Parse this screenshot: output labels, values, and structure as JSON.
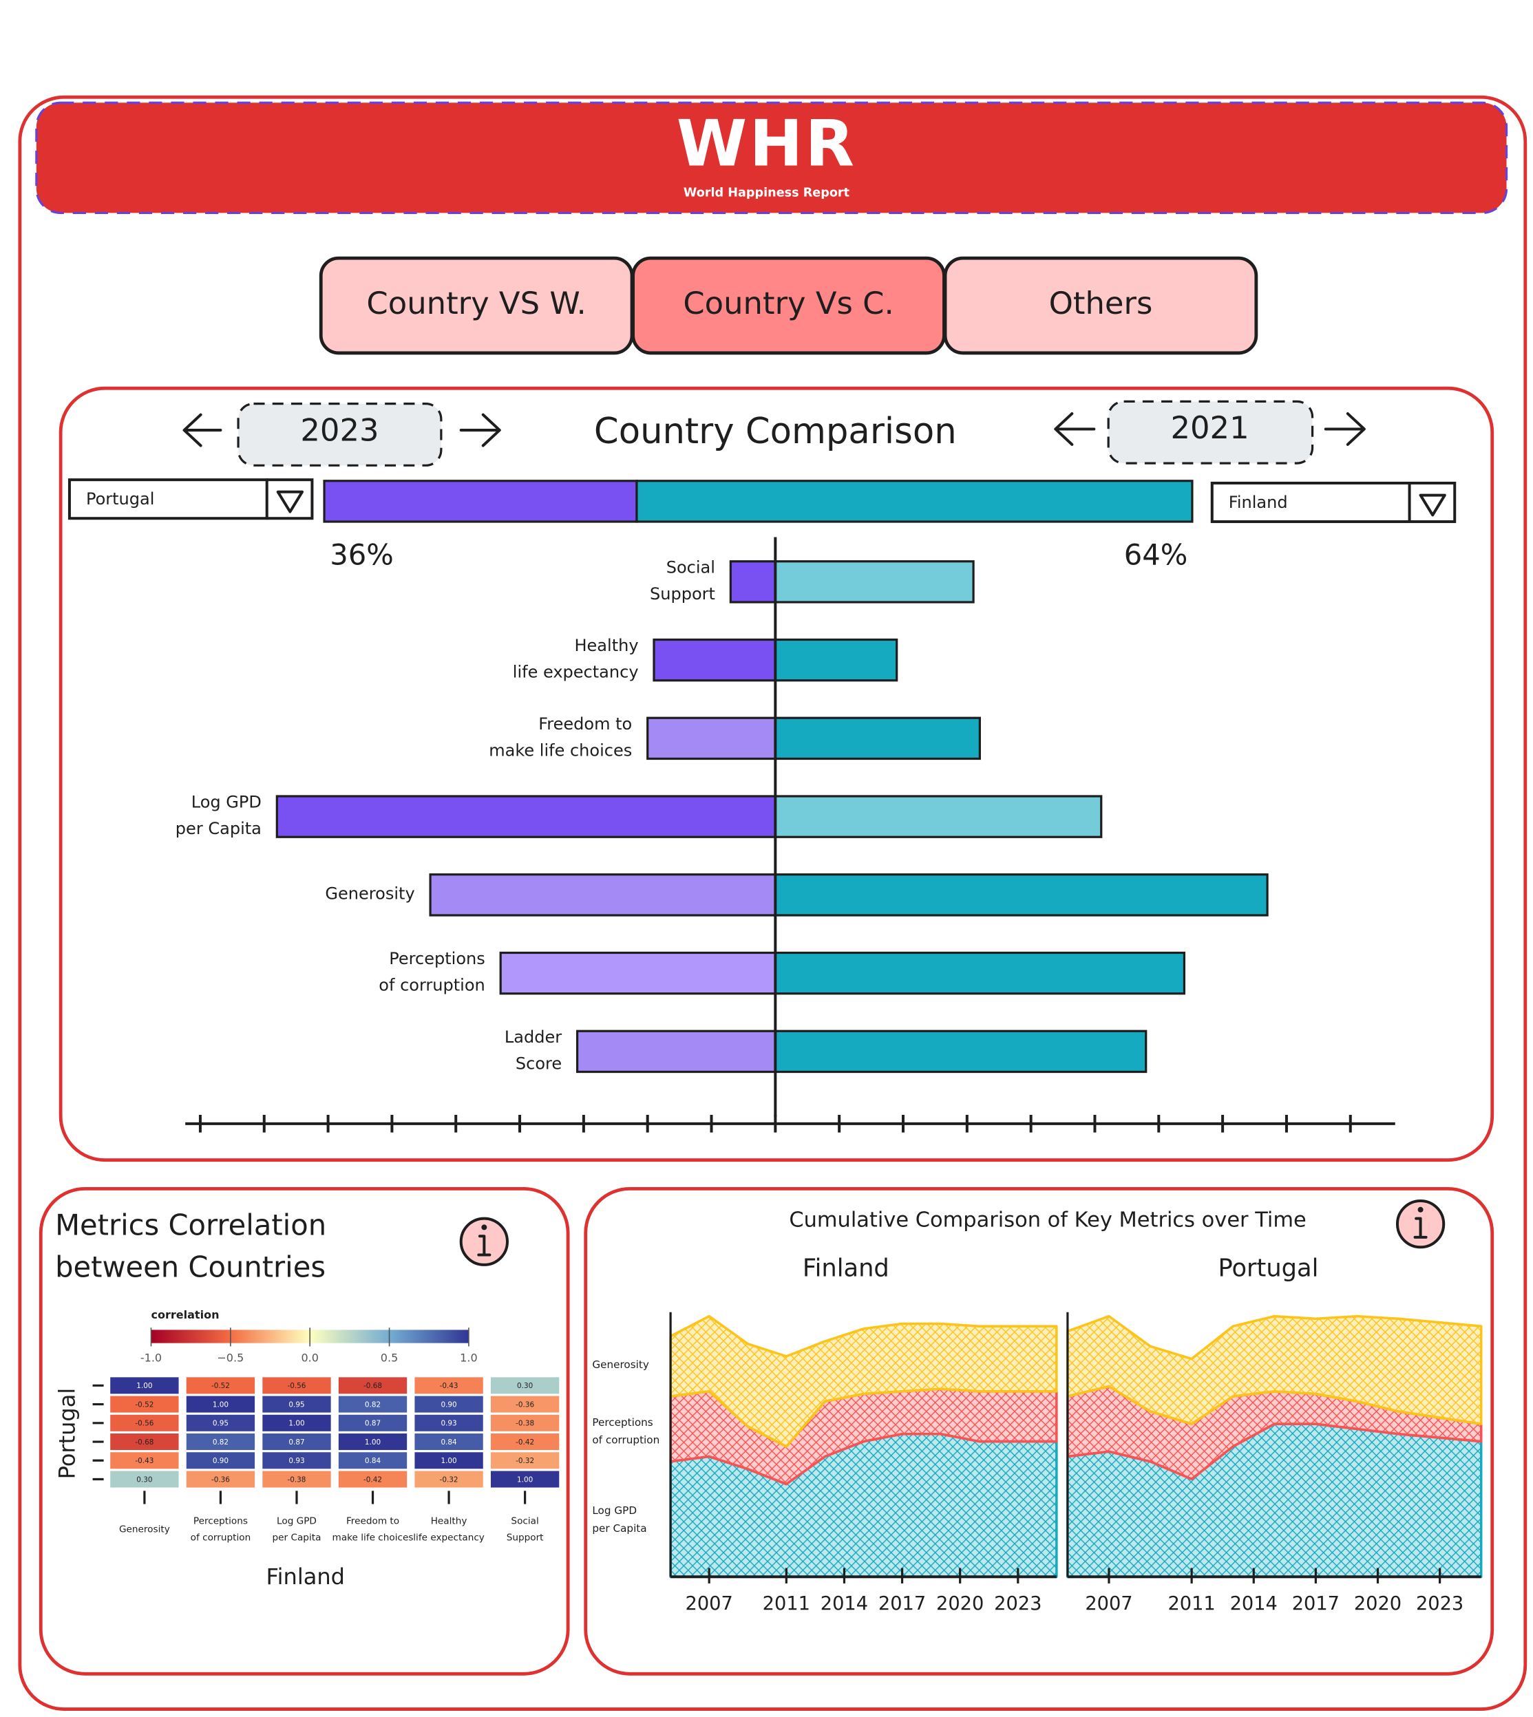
{
  "header": {
    "logo": "WHR",
    "subtitle": "World Happiness Report"
  },
  "tabs": [
    "Country VS W.",
    "Country Vs C.",
    "Others"
  ],
  "tab_colors": [
    "#ffc9c9",
    "#ff8787",
    "#ffc9c9"
  ],
  "comparison": {
    "title": "Country Comparison",
    "left_year": "2023",
    "right_year": "2021",
    "left_country": "Portugal",
    "right_country": "Finland"
  },
  "chart_data": [
    {
      "type": "share",
      "values": [
        36,
        64
      ],
      "value_labels": [
        "36%",
        "64%"
      ],
      "colors": [
        "#7950f2",
        "#15aabf"
      ]
    },
    {
      "type": "butterfly",
      "categories": [
        "Social Support",
        "Healthy life expectancy",
        "Freedom to make life choices",
        "Log GPD per Capita",
        "Generosity",
        "Perceptions of corruption",
        "Ladder Score"
      ],
      "series": [
        {
          "values": [
            -0.07,
            -0.19,
            -0.2,
            -0.78,
            -0.54,
            -0.43,
            -0.31
          ],
          "colors": [
            "#7950f2",
            "#7950f2",
            "#a48af5",
            "#7950f2",
            "#a48af5",
            "#b197fc",
            "#a48af5"
          ]
        },
        {
          "values": [
            0.31,
            0.19,
            0.32,
            0.51,
            0.77,
            0.64,
            0.58
          ],
          "colors": [
            "#74cbd9",
            "#15aabf",
            "#15aabf",
            "#74cbd9",
            "#15aabf",
            "#15aabf",
            "#15aabf"
          ]
        }
      ],
      "xlim": [
        -0.92,
        0.97
      ],
      "xticks": [
        -0.9,
        -0.8,
        -0.7,
        -0.6,
        -0.5,
        -0.4,
        -0.3,
        -0.2,
        -0.1,
        0,
        0.1,
        0.2,
        0.3,
        0.4,
        0.5,
        0.6,
        0.7,
        0.8,
        0.9
      ]
    },
    {
      "type": "heatmap",
      "title": "Metrics Correlation between Countries",
      "xlabel": "Finland",
      "ylabel": "Portugal",
      "categories": [
        "Generosity",
        "Perceptions of corruption",
        "Log GPD per Capita",
        "Freedom to make life choices",
        "Healthy life expectancy",
        "Social Support"
      ],
      "values": [
        [
          1,
          -0.52,
          -0.56,
          -0.68,
          -0.43,
          0.3
        ],
        [
          -0.52,
          1,
          0.95,
          0.82,
          0.9,
          -0.36
        ],
        [
          -0.56,
          0.95,
          1,
          0.87,
          0.93,
          -0.38
        ],
        [
          -0.68,
          0.82,
          0.87,
          1,
          0.84,
          -0.42
        ],
        [
          -0.43,
          0.9,
          0.93,
          0.84,
          1,
          -0.32
        ],
        [
          0.3,
          -0.36,
          -0.38,
          -0.42,
          -0.32,
          1
        ]
      ],
      "value_labels": [
        [
          "1.00",
          "-0.52",
          "-0.56",
          "-0.68",
          "-0.43",
          "0.30"
        ],
        [
          "-0.52",
          "1.00",
          "0.95",
          "0.82",
          "0.90",
          "-0.36"
        ],
        [
          "-0.56",
          "0.95",
          "1.00",
          "0.87",
          "0.93",
          "-0.38"
        ],
        [
          "-0.68",
          "0.82",
          "0.87",
          "1.00",
          "0.84",
          "-0.42"
        ],
        [
          "-0.43",
          "0.90",
          "0.93",
          "0.84",
          "1.00",
          "-0.32"
        ],
        [
          "0.30",
          "-0.36",
          "-0.38",
          "-0.42",
          "-0.32",
          "1.00"
        ]
      ],
      "colorbar": {
        "title": "correlation",
        "lim": [
          -1,
          1
        ],
        "ticks": [
          {
            "value": -1,
            "label": "-1.0"
          },
          {
            "value": -0.5,
            "label": "−0.5"
          },
          {
            "value": 0,
            "label": "0.0"
          },
          0.5,
          {
            "value": 1,
            "label": "1.0"
          }
        ]
      }
    },
    {
      "type": "stacked_area",
      "title": "Cumulative Comparison of Key Metrics over Time",
      "x": [
        2005,
        2007,
        2009,
        2011,
        2013,
        2015,
        2017,
        2019,
        2021,
        2025
      ],
      "xlim": [
        2005,
        2025
      ],
      "xticks": [
        2007,
        2011,
        2014,
        2017,
        2020,
        2023
      ],
      "ylim": [
        0,
        1.1
      ],
      "series": [
        {
          "name": "Log GPD per Capita",
          "color": "#15aabf"
        },
        {
          "name": "Perceptions of corruption",
          "color": "#fa5252"
        },
        {
          "name": "Generosity",
          "color": "#fcc419"
        }
      ],
      "panels": [
        {
          "title": "Finland",
          "series": [
            {
              "values": [
                0.46,
                0.48,
                0.43,
                0.37,
                0.48,
                0.54,
                0.57,
                0.57,
                0.54,
                0.54
              ]
            },
            {
              "values": [
                0.26,
                0.26,
                0.17,
                0.15,
                0.22,
                0.19,
                0.17,
                0.18,
                0.2,
                0.2
              ]
            },
            {
              "values": [
                0.24,
                0.3,
                0.33,
                0.36,
                0.24,
                0.26,
                0.27,
                0.26,
                0.26,
                0.26
              ]
            }
          ]
        },
        {
          "title": "Portugal",
          "series": [
            {
              "values": [
                0.48,
                0.5,
                0.46,
                0.39,
                0.52,
                0.61,
                0.61,
                0.59,
                0.57,
                0.54
              ]
            },
            {
              "values": [
                0.24,
                0.26,
                0.2,
                0.22,
                0.2,
                0.13,
                0.12,
                0.11,
                0.09,
                0.07
              ]
            },
            {
              "values": [
                0.26,
                0.28,
                0.26,
                0.26,
                0.28,
                0.3,
                0.3,
                0.34,
                0.37,
                0.39
              ]
            }
          ]
        }
      ]
    }
  ]
}
